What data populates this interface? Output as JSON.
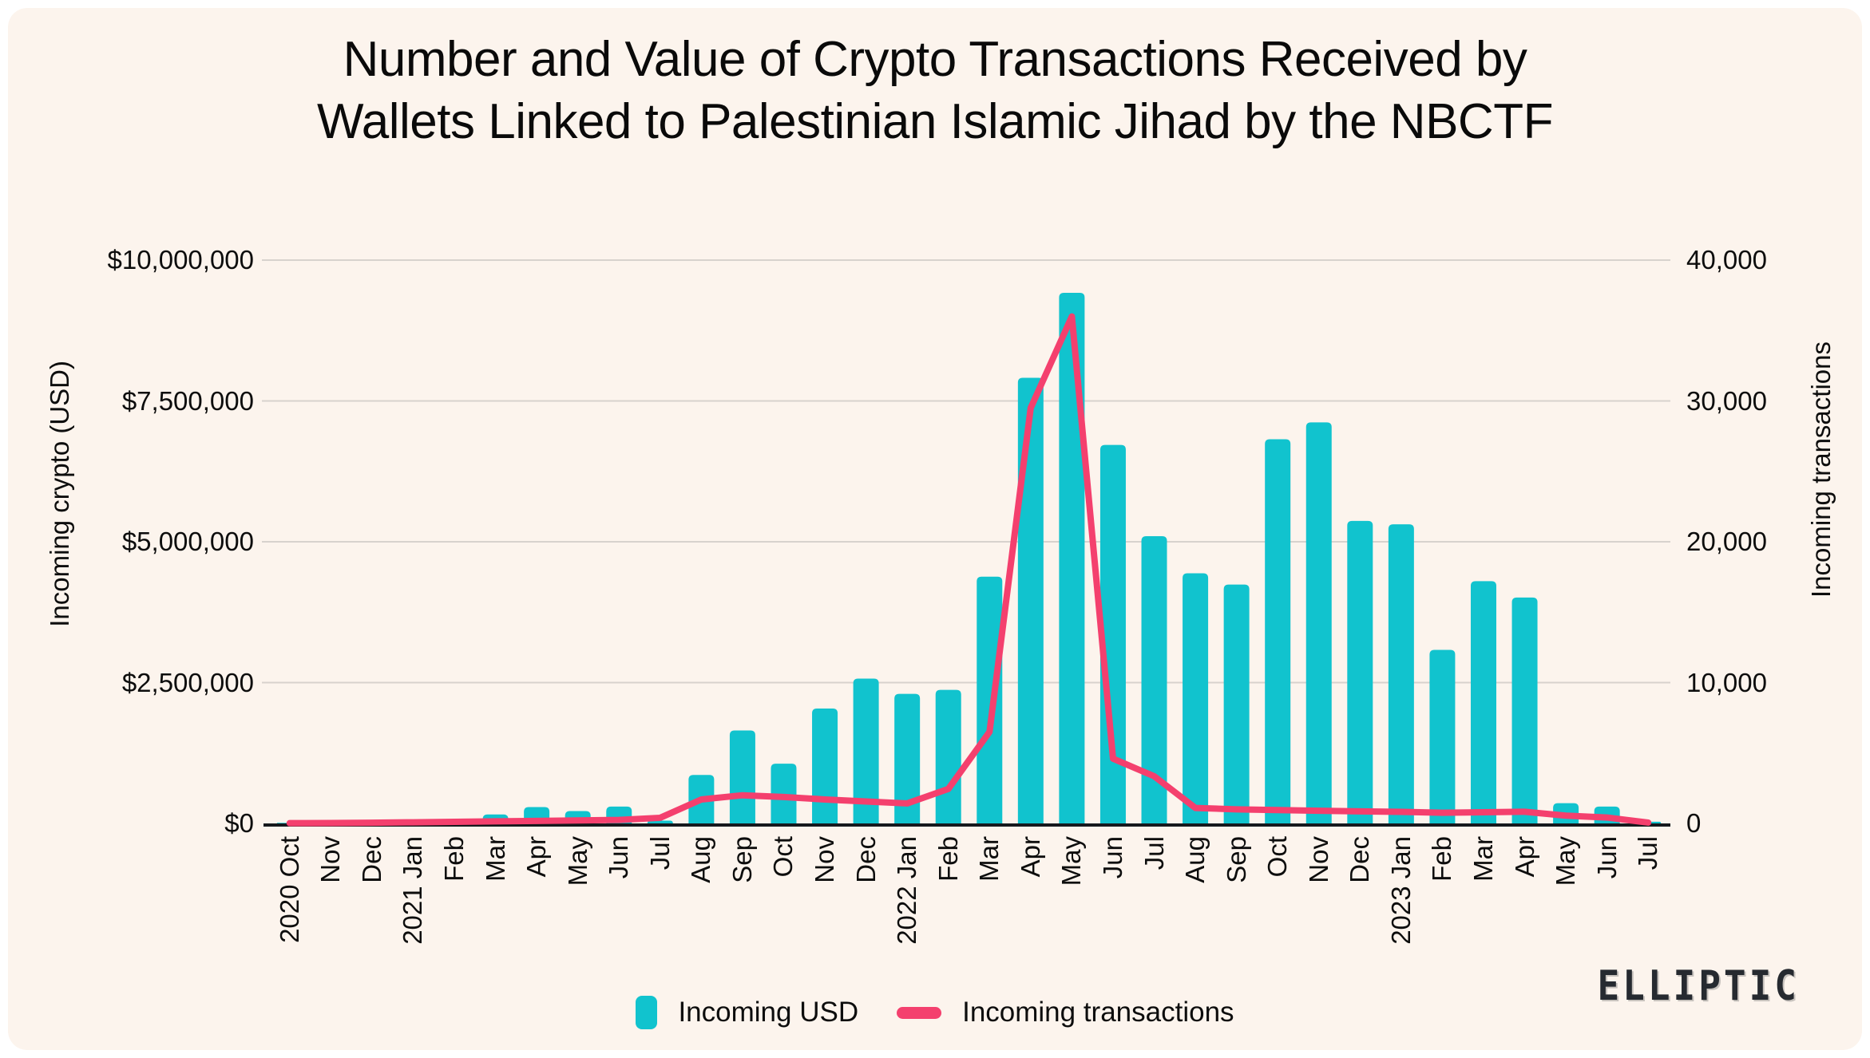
{
  "title": {
    "line1": "Number and Value of Crypto Transactions Received by",
    "line2": "Wallets Linked to Palestinian Islamic Jihad by the NBCTF"
  },
  "axes": {
    "left": {
      "title": "Incoming crypto (USD)",
      "ticks": [
        "$0",
        "$2,500,000",
        "$5,000,000",
        "$7,500,000",
        "$10,000,000"
      ]
    },
    "right": {
      "title": "Incoming transactions",
      "ticks": [
        "0",
        "10,000",
        "20,000",
        "30,000",
        "40,000"
      ]
    }
  },
  "legend": {
    "items": [
      {
        "label": "Incoming USD",
        "swatch": "bar-swatch",
        "color": "#11c3ce"
      },
      {
        "label": "Incoming transactions",
        "swatch": "line-swatch",
        "color": "#f4406e"
      }
    ]
  },
  "logo": {
    "text": "ELLIPTIC"
  },
  "colors": {
    "background_card": "#fcf4ed",
    "frame": "#ffffff",
    "bar": "#11c3ce",
    "line": "#f4406e",
    "gridline": "#d7d2cd",
    "baseline": "#16191d",
    "text": "#0d0d0d"
  },
  "chart_data": {
    "type": "bar",
    "title": "Number and Value of Crypto Transactions Received by Wallets Linked to Palestinian Islamic Jihad by the NBCTF",
    "categories": [
      "2020 Oct",
      "Nov",
      "Dec",
      "2021 Jan",
      "Feb",
      "Mar",
      "Apr",
      "May",
      "Jun",
      "Jul",
      "Aug",
      "Sep",
      "Oct",
      "Nov",
      "Dec",
      "2022 Jan",
      "Feb",
      "Mar",
      "Apr",
      "May",
      "Jun",
      "Jul",
      "Aug",
      "Sep",
      "Oct",
      "Nov",
      "Dec",
      "2023 Jan",
      "Feb",
      "Mar",
      "Apr",
      "May",
      "Jun",
      "Jul"
    ],
    "series": [
      {
        "name": "Incoming USD",
        "type": "bar",
        "axis": "left",
        "values": [
          10000,
          15000,
          15000,
          20000,
          25000,
          160000,
          290000,
          220000,
          300000,
          50000,
          860000,
          1650000,
          1060000,
          2040000,
          2570000,
          2300000,
          2370000,
          4380000,
          7910000,
          9420000,
          6720000,
          5100000,
          4440000,
          4240000,
          6820000,
          7120000,
          5370000,
          5310000,
          3080000,
          4300000,
          4010000,
          360000,
          300000,
          30000
        ]
      },
      {
        "name": "Incoming transactions",
        "type": "line",
        "axis": "right",
        "values": [
          20,
          30,
          50,
          80,
          110,
          150,
          180,
          210,
          250,
          400,
          1700,
          2000,
          1880,
          1700,
          1560,
          1420,
          2450,
          6500,
          29500,
          36000,
          4600,
          3350,
          1100,
          1000,
          950,
          900,
          860,
          820,
          760,
          790,
          830,
          550,
          420,
          60
        ]
      }
    ],
    "ylabel_left": "Incoming crypto (USD)",
    "ylabel_right": "Incoming transactions",
    "ylim_left": [
      0,
      10000000
    ],
    "ylim_right": [
      0,
      40000
    ],
    "grid": true,
    "legend_position": "bottom"
  }
}
